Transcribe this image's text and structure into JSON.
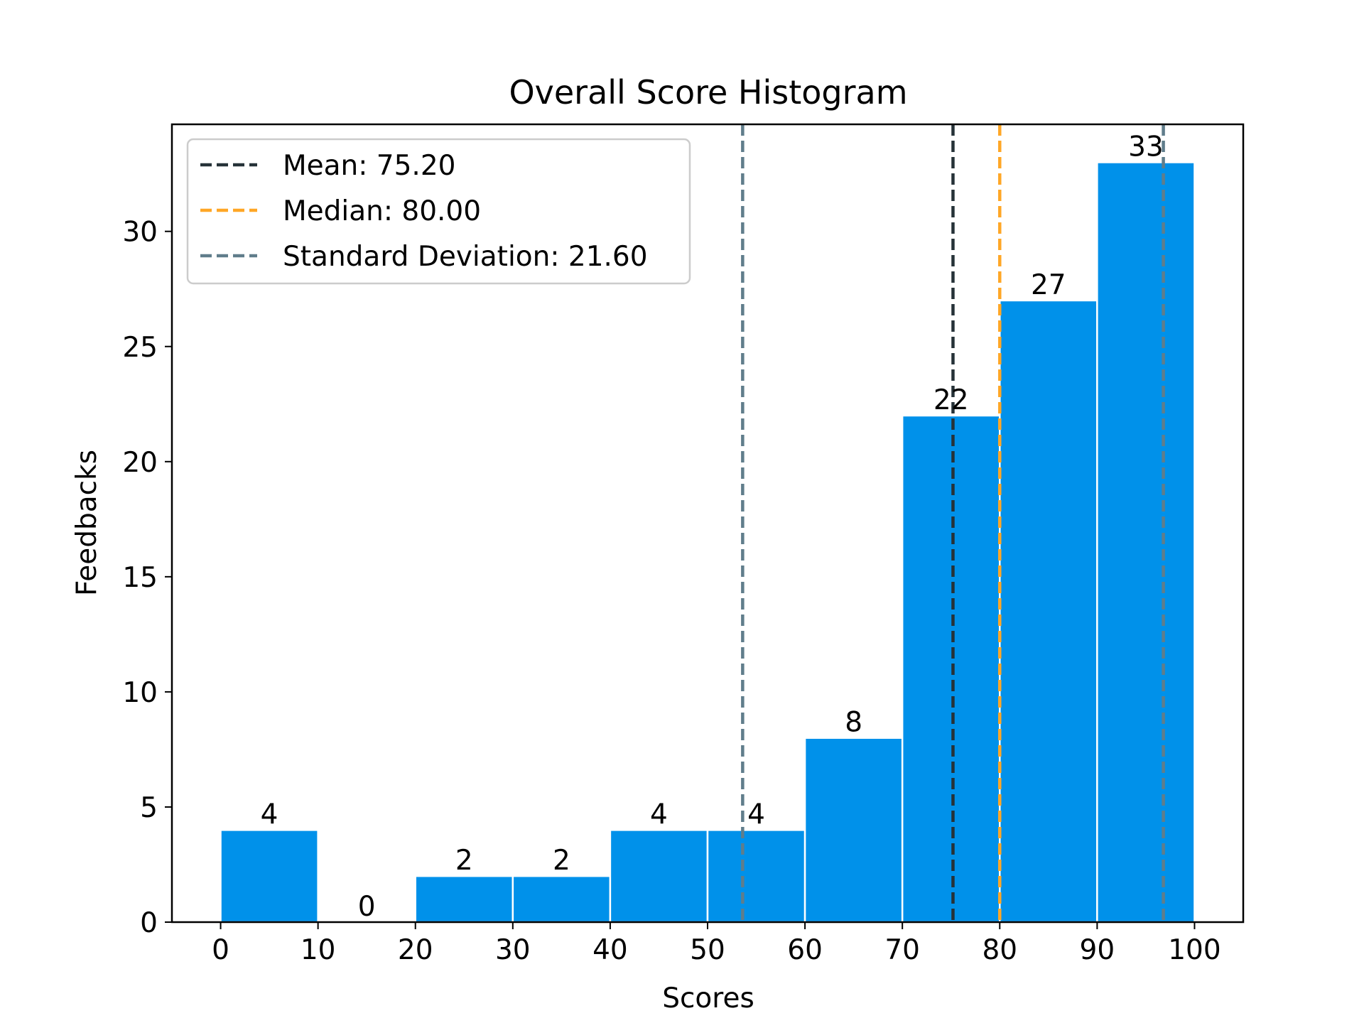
{
  "chart_data": {
    "type": "bar",
    "title": "Overall Score Histogram",
    "xlabel": "Scores",
    "ylabel": "Feedbacks",
    "bins": [
      [
        0,
        10
      ],
      [
        10,
        20
      ],
      [
        20,
        30
      ],
      [
        30,
        40
      ],
      [
        40,
        50
      ],
      [
        50,
        60
      ],
      [
        60,
        70
      ],
      [
        70,
        80
      ],
      [
        80,
        90
      ],
      [
        90,
        100
      ]
    ],
    "values": [
      4,
      0,
      2,
      2,
      4,
      4,
      8,
      22,
      27,
      33
    ],
    "value_labels": [
      "4",
      "0",
      "2",
      "2",
      "4",
      "4",
      "8",
      "22",
      "27",
      "33"
    ],
    "xlim": [
      -5,
      105
    ],
    "ylim": [
      0,
      34.65
    ],
    "xticks": [
      0,
      10,
      20,
      30,
      40,
      50,
      60,
      70,
      80,
      90,
      100
    ],
    "xtick_labels": [
      "0",
      "10",
      "20",
      "30",
      "40",
      "50",
      "60",
      "70",
      "80",
      "90",
      "100"
    ],
    "yticks": [
      0,
      5,
      10,
      15,
      20,
      25,
      30
    ],
    "ytick_labels": [
      "0",
      "5",
      "10",
      "15",
      "20",
      "25",
      "30"
    ],
    "bar_color": "#0091EA",
    "grid": false,
    "legend_position": "upper-left",
    "reference_lines": [
      {
        "label": "Mean: 75.20",
        "x": 75.2,
        "color": "#263238"
      },
      {
        "label": "Median: 80.00",
        "x": 80.0,
        "color": "#FFA726"
      },
      {
        "label": "Standard Deviation: 21.60",
        "x": 53.6,
        "color": "#607D8B"
      },
      {
        "label": "",
        "x": 96.8,
        "color": "#607D8B"
      }
    ]
  }
}
